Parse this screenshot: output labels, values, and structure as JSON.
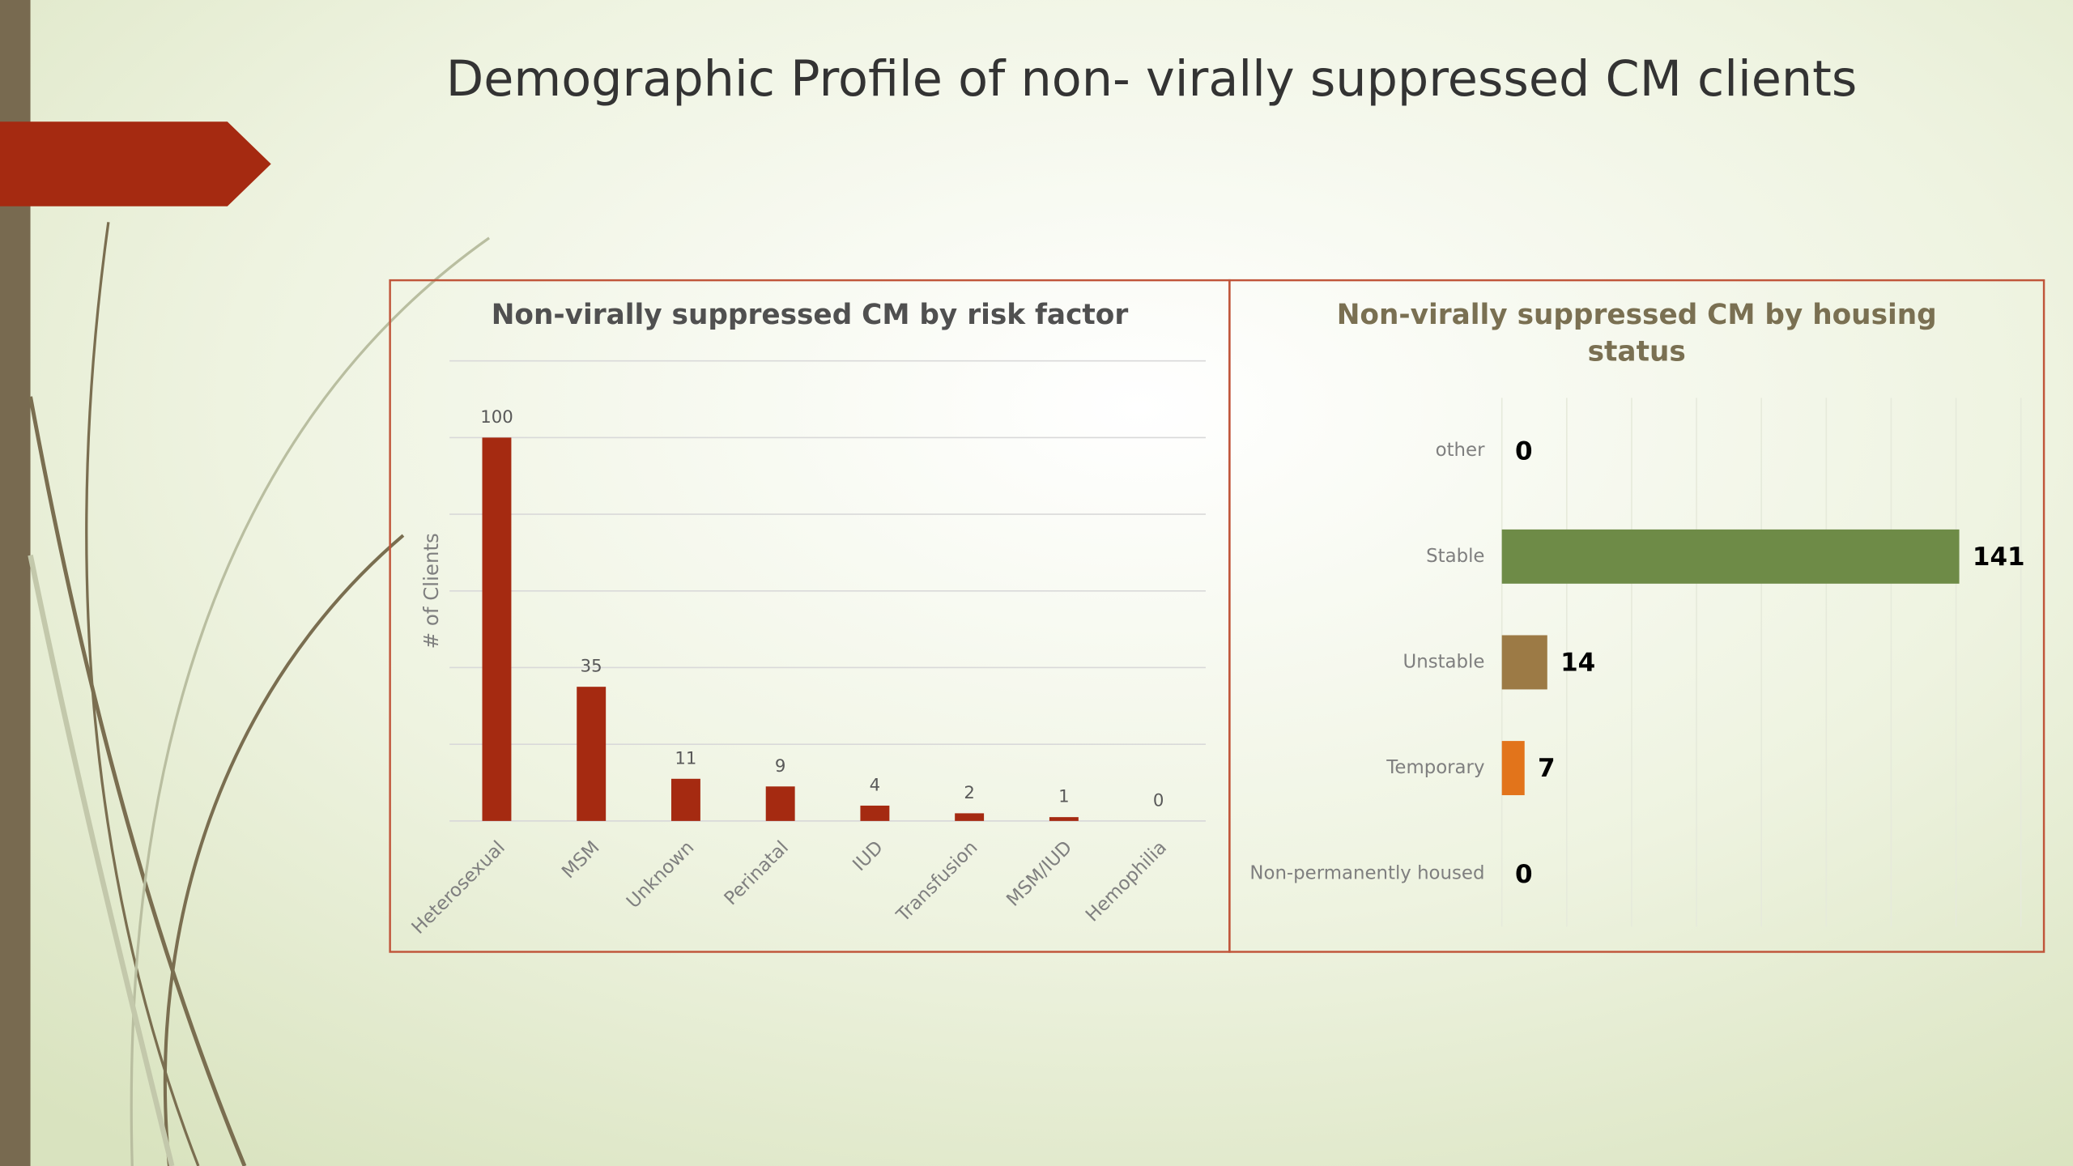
{
  "title": "Demographic Profile of non- virally suppressed CM clients",
  "chart_data": [
    {
      "type": "bar",
      "title": "Non-virally suppressed CM by risk factor",
      "ylabel": "# of Clients",
      "categories": [
        "Heterosexual",
        "MSM",
        "Unknown",
        "Perinatal",
        "IUD",
        "Transfusion",
        "MSM/IUD",
        "Hemophilia"
      ],
      "values": [
        100,
        35,
        11,
        9,
        4,
        2,
        1,
        0
      ],
      "color": "#a52a11",
      "ylim": [
        0,
        120
      ],
      "yticks": [
        0,
        20,
        40,
        60,
        80,
        100,
        120
      ],
      "grid": true
    },
    {
      "type": "bar",
      "horizontal": true,
      "title": "Non-virally suppressed CM by housing status",
      "categories": [
        "other",
        "Stable",
        "Unstable",
        "Temporary",
        "Non-permanently housed"
      ],
      "values": [
        0,
        141,
        14,
        7,
        0
      ],
      "colors": [
        null,
        "#6e8b47",
        "#9c7a45",
        "#e2741b",
        null
      ],
      "xlim": [
        0,
        160
      ],
      "xticks": [
        0,
        20,
        40,
        60,
        80,
        100,
        120,
        140,
        160
      ],
      "grid": true
    }
  ]
}
